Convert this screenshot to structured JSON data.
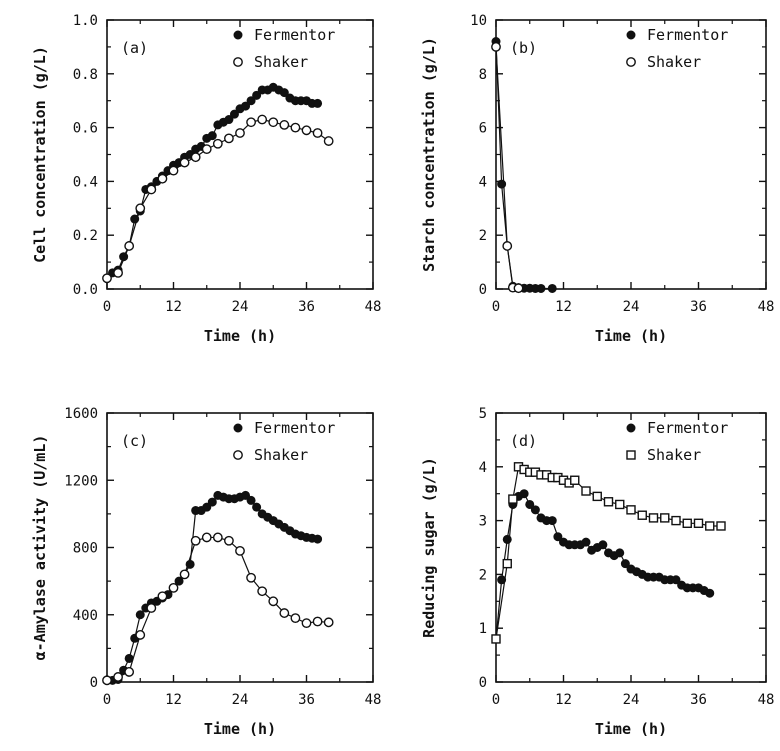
{
  "chart_data": [
    {
      "type": "line",
      "panel_label": "(a)",
      "xlabel": "Time (h)",
      "ylabel": "Cell concentration (g/L)",
      "xlim": [
        0,
        48
      ],
      "ylim": [
        0,
        1.0
      ],
      "xticks": [
        "0",
        "12",
        "24",
        "36",
        "48"
      ],
      "yticks": [
        "0.0",
        "0.2",
        "0.4",
        "0.6",
        "0.8",
        "1.0"
      ],
      "legend_position": "top-right",
      "series": [
        {
          "name": "Fermentor",
          "marker": "filled-circle",
          "x": [
            0,
            1,
            2,
            3,
            4,
            5,
            6,
            7,
            8,
            9,
            10,
            11,
            12,
            13,
            14,
            15,
            16,
            17,
            18,
            19,
            20,
            21,
            22,
            23,
            24,
            25,
            26,
            27,
            28,
            29,
            30,
            31,
            32,
            33,
            34,
            35,
            36,
            37,
            38
          ],
          "y": [
            0.04,
            0.06,
            0.07,
            0.12,
            0.16,
            0.26,
            0.29,
            0.37,
            0.38,
            0.4,
            0.42,
            0.44,
            0.46,
            0.47,
            0.49,
            0.5,
            0.52,
            0.53,
            0.56,
            0.57,
            0.61,
            0.62,
            0.63,
            0.65,
            0.67,
            0.68,
            0.7,
            0.72,
            0.74,
            0.74,
            0.75,
            0.74,
            0.73,
            0.71,
            0.7,
            0.7,
            0.7,
            0.69,
            0.69
          ]
        },
        {
          "name": "Shaker",
          "marker": "open-circle",
          "x": [
            0,
            2,
            4,
            6,
            8,
            10,
            12,
            14,
            16,
            18,
            20,
            22,
            24,
            26,
            28,
            30,
            32,
            34,
            36,
            38,
            40
          ],
          "y": [
            0.04,
            0.06,
            0.16,
            0.3,
            0.37,
            0.41,
            0.44,
            0.47,
            0.49,
            0.52,
            0.54,
            0.56,
            0.58,
            0.62,
            0.63,
            0.62,
            0.61,
            0.6,
            0.59,
            0.58,
            0.55
          ]
        }
      ]
    },
    {
      "type": "line",
      "panel_label": "(b)",
      "xlabel": "Time (h)",
      "ylabel": "Starch concentration (g/L)",
      "xlim": [
        0,
        48
      ],
      "ylim": [
        0,
        10
      ],
      "xticks": [
        "0",
        "12",
        "24",
        "36",
        "48"
      ],
      "yticks": [
        "0",
        "2",
        "4",
        "6",
        "8",
        "10"
      ],
      "legend_position": "top-right",
      "series": [
        {
          "name": "Fermentor",
          "marker": "filled-circle",
          "x": [
            0,
            1,
            2,
            3,
            4,
            5,
            6,
            7,
            8,
            10
          ],
          "y": [
            9.2,
            3.9,
            1.6,
            0.1,
            0.05,
            0.03,
            0.03,
            0.02,
            0.02,
            0.02
          ]
        },
        {
          "name": "Shaker",
          "marker": "open-circle",
          "x": [
            0,
            2,
            3,
            4
          ],
          "y": [
            9.0,
            1.6,
            0.05,
            0.03
          ]
        }
      ]
    },
    {
      "type": "line",
      "panel_label": "(c)",
      "xlabel": "Time (h)",
      "ylabel": "α-Amylase activity (U/mL)",
      "xlim": [
        0,
        48
      ],
      "ylim": [
        0,
        1600
      ],
      "xticks": [
        "0",
        "12",
        "24",
        "36",
        "48"
      ],
      "yticks": [
        "0",
        "400",
        "800",
        "1200",
        "1600"
      ],
      "legend_position": "top-right",
      "series": [
        {
          "name": "Fermentor",
          "marker": "filled-circle",
          "x": [
            0,
            1,
            2,
            3,
            4,
            5,
            6,
            7,
            8,
            9,
            10,
            11,
            12,
            13,
            14,
            15,
            16,
            17,
            18,
            19,
            20,
            21,
            22,
            23,
            24,
            25,
            26,
            27,
            28,
            29,
            30,
            31,
            32,
            33,
            34,
            35,
            36,
            37,
            38
          ],
          "y": [
            10,
            10,
            15,
            70,
            140,
            260,
            400,
            440,
            470,
            480,
            500,
            520,
            560,
            600,
            640,
            700,
            1020,
            1020,
            1040,
            1070,
            1110,
            1100,
            1090,
            1090,
            1100,
            1110,
            1080,
            1040,
            1000,
            980,
            960,
            940,
            920,
            900,
            880,
            870,
            860,
            855,
            850
          ]
        },
        {
          "name": "Shaker",
          "marker": "open-circle",
          "x": [
            0,
            2,
            4,
            6,
            8,
            10,
            12,
            14,
            16,
            18,
            20,
            22,
            24,
            26,
            28,
            30,
            32,
            34,
            36,
            38,
            40
          ],
          "y": [
            10,
            30,
            60,
            280,
            440,
            510,
            560,
            640,
            840,
            860,
            860,
            840,
            780,
            620,
            540,
            480,
            410,
            380,
            350,
            360,
            355
          ]
        }
      ]
    },
    {
      "type": "line",
      "panel_label": "(d)",
      "xlabel": "Time (h)",
      "ylabel": "Reducing sugar (g/L)",
      "xlim": [
        0,
        48
      ],
      "ylim": [
        0,
        5
      ],
      "xticks": [
        "0",
        "12",
        "24",
        "36",
        "48"
      ],
      "yticks": [
        "0",
        "1",
        "2",
        "3",
        "4",
        "5"
      ],
      "legend_position": "top-right",
      "series": [
        {
          "name": "Fermentor",
          "marker": "filled-circle",
          "x": [
            0,
            1,
            2,
            3,
            4,
            5,
            6,
            7,
            8,
            9,
            10,
            11,
            12,
            13,
            14,
            15,
            16,
            17,
            18,
            19,
            20,
            21,
            22,
            23,
            24,
            25,
            26,
            27,
            28,
            29,
            30,
            31,
            32,
            33,
            34,
            35,
            36,
            37,
            38
          ],
          "y": [
            0.8,
            1.9,
            2.65,
            3.3,
            3.45,
            3.5,
            3.3,
            3.2,
            3.05,
            3.0,
            3.0,
            2.7,
            2.6,
            2.55,
            2.55,
            2.55,
            2.6,
            2.45,
            2.5,
            2.55,
            2.4,
            2.35,
            2.4,
            2.2,
            2.1,
            2.05,
            2.0,
            1.95,
            1.95,
            1.95,
            1.9,
            1.9,
            1.9,
            1.8,
            1.75,
            1.75,
            1.75,
            1.7,
            1.65
          ]
        },
        {
          "name": "Shaker",
          "marker": "open-square",
          "x": [
            0,
            2,
            3,
            4,
            5,
            6,
            7,
            8,
            9,
            10,
            11,
            12,
            13,
            14,
            16,
            18,
            20,
            22,
            24,
            26,
            28,
            30,
            32,
            34,
            36,
            38,
            40
          ],
          "y": [
            0.8,
            2.2,
            3.4,
            4.0,
            3.95,
            3.9,
            3.9,
            3.85,
            3.85,
            3.8,
            3.8,
            3.75,
            3.7,
            3.75,
            3.55,
            3.45,
            3.35,
            3.3,
            3.2,
            3.1,
            3.05,
            3.05,
            3.0,
            2.95,
            2.95,
            2.9,
            2.9
          ]
        }
      ]
    }
  ]
}
